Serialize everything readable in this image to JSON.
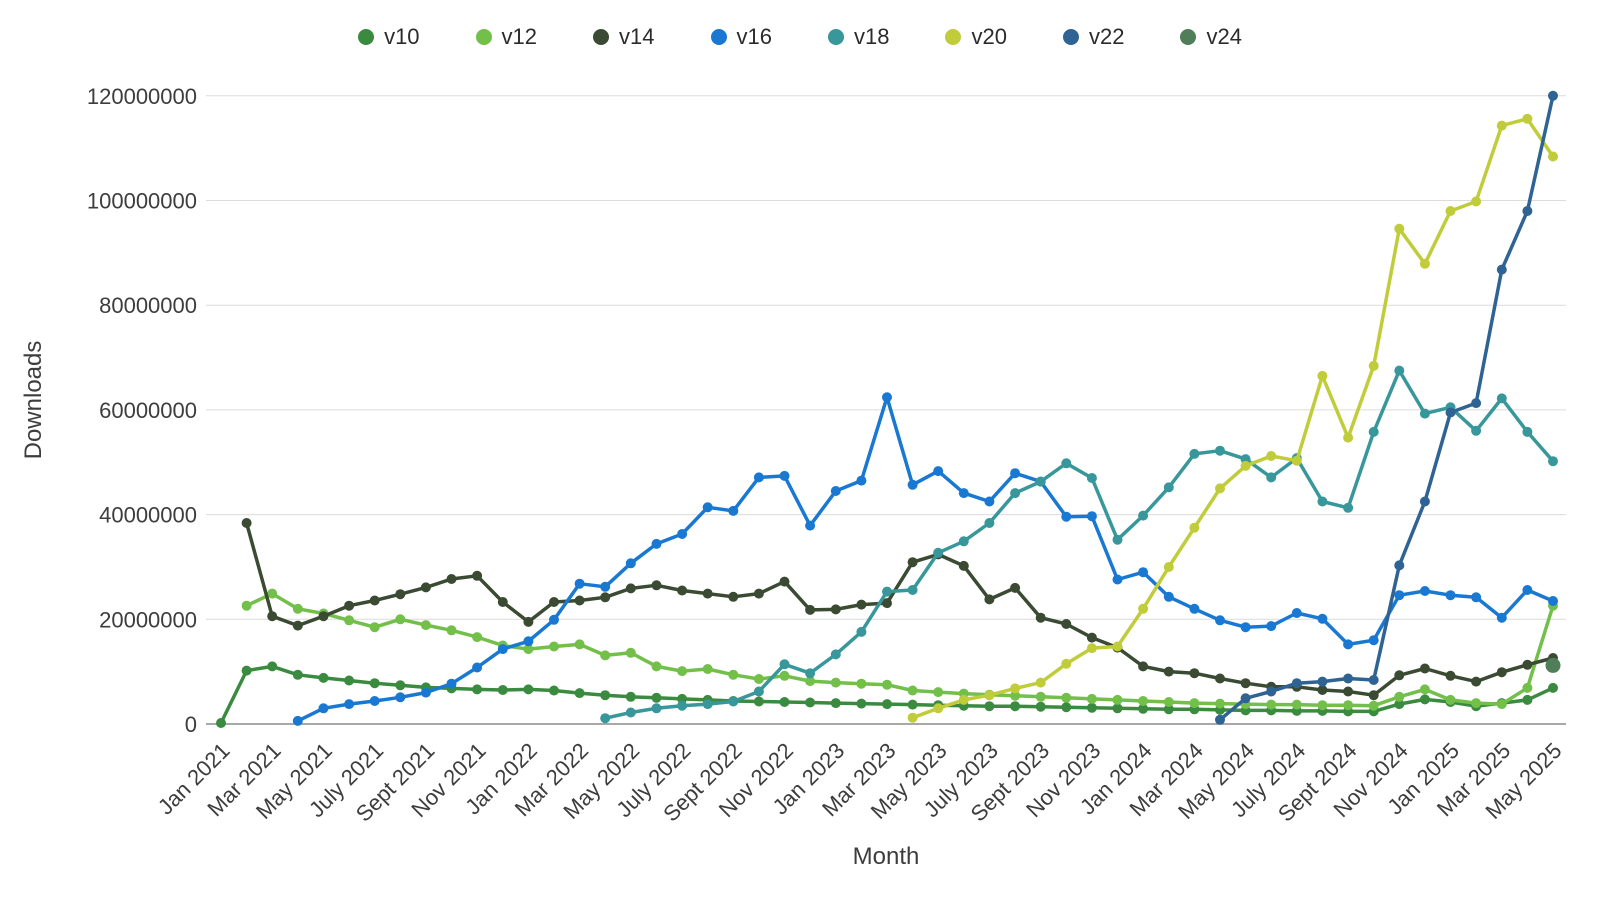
{
  "chart_data": {
    "type": "line",
    "title": "",
    "xlabel": "Month",
    "ylabel": "Downloads",
    "grid": "horizontal",
    "legend_position": "top",
    "ylim": [
      0,
      120000000
    ],
    "y_ticks": [
      0,
      20000000,
      40000000,
      60000000,
      80000000,
      100000000,
      120000000
    ],
    "x_ticks_every": 2,
    "months": [
      "Jan 2021",
      "Feb 2021",
      "Mar 2021",
      "Apr 2021",
      "May 2021",
      "June 2021",
      "July 2021",
      "Aug 2021",
      "Sept 2021",
      "Oct 2021",
      "Nov 2021",
      "Dec 2021",
      "Jan 2022",
      "Feb 2022",
      "Mar 2022",
      "Apr 2022",
      "May 2022",
      "June 2022",
      "July 2022",
      "Aug 2022",
      "Sept 2022",
      "Oct 2022",
      "Nov 2022",
      "Dec 2022",
      "Jan 2023",
      "Feb 2023",
      "Mar 2023",
      "Apr 2023",
      "May 2023",
      "June 2023",
      "July 2023",
      "Aug 2023",
      "Sept 2023",
      "Oct 2023",
      "Nov 2023",
      "Dec 2023",
      "Jan 2024",
      "Feb 2024",
      "Mar 2024",
      "Apr 2024",
      "May 2024",
      "June 2024",
      "July 2024",
      "Aug 2024",
      "Sept 2024",
      "Oct 2024",
      "Nov 2024",
      "Dec 2024",
      "Jan 2025",
      "Feb 2025",
      "Mar 2025",
      "Apr 2025",
      "May 2025"
    ],
    "series": [
      {
        "name": "v10",
        "color": "#3a8b3f",
        "values": [
          200000,
          10200000,
          11000000,
          9400000,
          8800000,
          8300000,
          7800000,
          7400000,
          7000000,
          6800000,
          6600000,
          6500000,
          6600000,
          6400000,
          5900000,
          5500000,
          5200000,
          5000000,
          4800000,
          4600000,
          4400000,
          4300000,
          4200000,
          4100000,
          4000000,
          3900000,
          3800000,
          3700000,
          3600000,
          3500000,
          3400000,
          3400000,
          3300000,
          3200000,
          3100000,
          3000000,
          2900000,
          2800000,
          2800000,
          2700000,
          2600000,
          2600000,
          2500000,
          2500000,
          2400000,
          2400000,
          3800000,
          4700000,
          4200000,
          3400000,
          4000000,
          4600000,
          6900000
        ]
      },
      {
        "name": "v12",
        "color": "#72bf4a",
        "values": [
          null,
          22600000,
          24900000,
          22000000,
          21100000,
          19800000,
          18500000,
          20000000,
          18900000,
          17900000,
          16600000,
          15000000,
          14300000,
          14800000,
          15200000,
          13100000,
          13600000,
          11000000,
          10100000,
          10500000,
          9400000,
          8600000,
          9200000,
          8200000,
          7900000,
          7700000,
          7500000,
          6400000,
          6100000,
          5800000,
          5600000,
          5400000,
          5200000,
          5000000,
          4800000,
          4600000,
          4400000,
          4200000,
          4000000,
          3900000,
          3800000,
          3700000,
          3700000,
          3600000,
          3600000,
          3500000,
          5200000,
          6600000,
          4600000,
          4000000,
          3800000,
          6900000,
          22600000
        ]
      },
      {
        "name": "v14",
        "color": "#3b4a32",
        "values": [
          null,
          38400000,
          20600000,
          18800000,
          20600000,
          22600000,
          23600000,
          24800000,
          26100000,
          27700000,
          28300000,
          23300000,
          19500000,
          23300000,
          23600000,
          24200000,
          25900000,
          26500000,
          25500000,
          24900000,
          24300000,
          24900000,
          27200000,
          21800000,
          21900000,
          22800000,
          23100000,
          30900000,
          32400000,
          30200000,
          23800000,
          26000000,
          20300000,
          19100000,
          16500000,
          14600000,
          11000000,
          10000000,
          9700000,
          8700000,
          7800000,
          7100000,
          7100000,
          6500000,
          6200000,
          5500000,
          9300000,
          10600000,
          9200000,
          8100000,
          9900000,
          11300000,
          12600000
        ]
      },
      {
        "name": "v16",
        "color": "#1878d2",
        "values": [
          null,
          null,
          null,
          600000,
          3000000,
          3800000,
          4400000,
          5100000,
          6000000,
          7700000,
          10800000,
          14300000,
          15800000,
          19900000,
          26800000,
          26200000,
          30700000,
          34400000,
          36300000,
          41400000,
          40700000,
          47100000,
          47400000,
          37900000,
          44500000,
          46500000,
          62400000,
          45700000,
          48300000,
          44100000,
          42500000,
          47900000,
          46300000,
          39600000,
          39700000,
          27600000,
          29000000,
          24300000,
          22000000,
          19800000,
          18500000,
          18700000,
          21200000,
          20100000,
          15200000,
          16000000,
          24600000,
          25400000,
          24600000,
          24200000,
          20300000,
          25600000,
          23500000
        ]
      },
      {
        "name": "v18",
        "color": "#38979a",
        "values": [
          null,
          null,
          null,
          null,
          null,
          null,
          null,
          null,
          null,
          null,
          null,
          null,
          null,
          null,
          null,
          1100000,
          2200000,
          3000000,
          3500000,
          3800000,
          4300000,
          6200000,
          11400000,
          9700000,
          13300000,
          17600000,
          25300000,
          25600000,
          32700000,
          34900000,
          38400000,
          44100000,
          46300000,
          49800000,
          47000000,
          35200000,
          39800000,
          45200000,
          51600000,
          52200000,
          50600000,
          47100000,
          50800000,
          42500000,
          41300000,
          55800000,
          67500000,
          59300000,
          60500000,
          56000000,
          62200000,
          55800000,
          50200000
        ]
      },
      {
        "name": "v20",
        "color": "#c0cc3a",
        "values": [
          null,
          null,
          null,
          null,
          null,
          null,
          null,
          null,
          null,
          null,
          null,
          null,
          null,
          null,
          null,
          null,
          null,
          null,
          null,
          null,
          null,
          null,
          null,
          null,
          null,
          null,
          null,
          1200000,
          3000000,
          4600000,
          5500000,
          6800000,
          7900000,
          11500000,
          14500000,
          14800000,
          22000000,
          30000000,
          37500000,
          45000000,
          49300000,
          51200000,
          50300000,
          66500000,
          54700000,
          68400000,
          94600000,
          87900000,
          98000000,
          99800000,
          114300000,
          115600000,
          108400000
        ]
      },
      {
        "name": "v22",
        "color": "#2f6394",
        "values": [
          null,
          null,
          null,
          null,
          null,
          null,
          null,
          null,
          null,
          null,
          null,
          null,
          null,
          null,
          null,
          null,
          null,
          null,
          null,
          null,
          null,
          null,
          null,
          null,
          null,
          null,
          null,
          null,
          null,
          null,
          null,
          null,
          null,
          null,
          null,
          null,
          null,
          null,
          null,
          800000,
          4900000,
          6200000,
          7800000,
          8100000,
          8700000,
          8400000,
          30300000,
          42500000,
          59500000,
          61300000,
          86800000,
          98000000,
          120000000
        ]
      },
      {
        "name": "v24",
        "color": "#4f7e58",
        "values": [
          null,
          null,
          null,
          null,
          null,
          null,
          null,
          null,
          null,
          null,
          null,
          null,
          null,
          null,
          null,
          null,
          null,
          null,
          null,
          null,
          null,
          null,
          null,
          null,
          null,
          null,
          null,
          null,
          null,
          null,
          null,
          null,
          null,
          null,
          null,
          null,
          null,
          null,
          null,
          null,
          null,
          null,
          null,
          null,
          null,
          null,
          null,
          null,
          null,
          null,
          null,
          null,
          11200000
        ]
      }
    ]
  }
}
